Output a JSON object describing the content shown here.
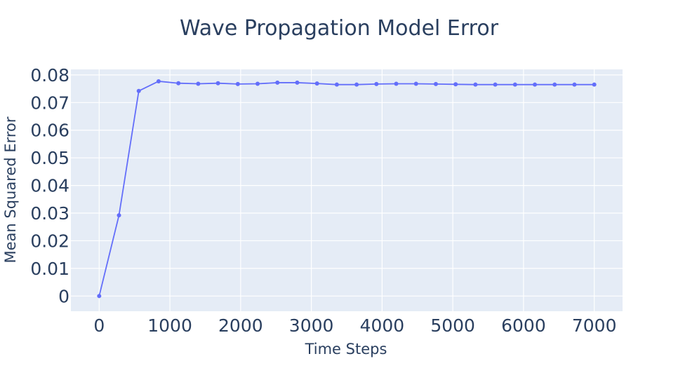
{
  "chart_data": {
    "type": "line",
    "title": "Wave Propagation Model Error",
    "xlabel": "Time Steps",
    "ylabel": "Mean Squared Error",
    "xlim": [
      -400,
      7400
    ],
    "ylim": [
      -0.0055,
      0.082
    ],
    "x_ticks": [
      0,
      1000,
      2000,
      3000,
      4000,
      5000,
      6000,
      7000
    ],
    "x_tick_labels": [
      "0",
      "1000",
      "2000",
      "3000",
      "4000",
      "5000",
      "6000",
      "7000"
    ],
    "y_ticks": [
      0,
      0.01,
      0.02,
      0.03,
      0.04,
      0.05,
      0.06,
      0.07,
      0.08
    ],
    "y_tick_labels": [
      "0",
      "0.01",
      "0.02",
      "0.03",
      "0.04",
      "0.05",
      "0.06",
      "0.07",
      "0.08"
    ],
    "grid": true,
    "legend": false,
    "colors": {
      "plot_bg": "#e5ecf6",
      "line": "#636efa",
      "text": "#2a3f5f"
    },
    "series": [
      {
        "mode": "lines+markers",
        "x": [
          0,
          280,
          560,
          840,
          1120,
          1400,
          1680,
          1960,
          2240,
          2520,
          2800,
          3080,
          3360,
          3640,
          3920,
          4200,
          4480,
          4760,
          5040,
          5320,
          5600,
          5880,
          6160,
          6440,
          6720,
          7000
        ],
        "y": [
          0.0,
          0.0292,
          0.0742,
          0.0777,
          0.077,
          0.0768,
          0.077,
          0.0767,
          0.0768,
          0.0772,
          0.0772,
          0.0769,
          0.0765,
          0.0765,
          0.0767,
          0.0768,
          0.0768,
          0.0767,
          0.0766,
          0.0765,
          0.0765,
          0.0765,
          0.0765,
          0.0765,
          0.0765,
          0.0765
        ]
      }
    ]
  }
}
